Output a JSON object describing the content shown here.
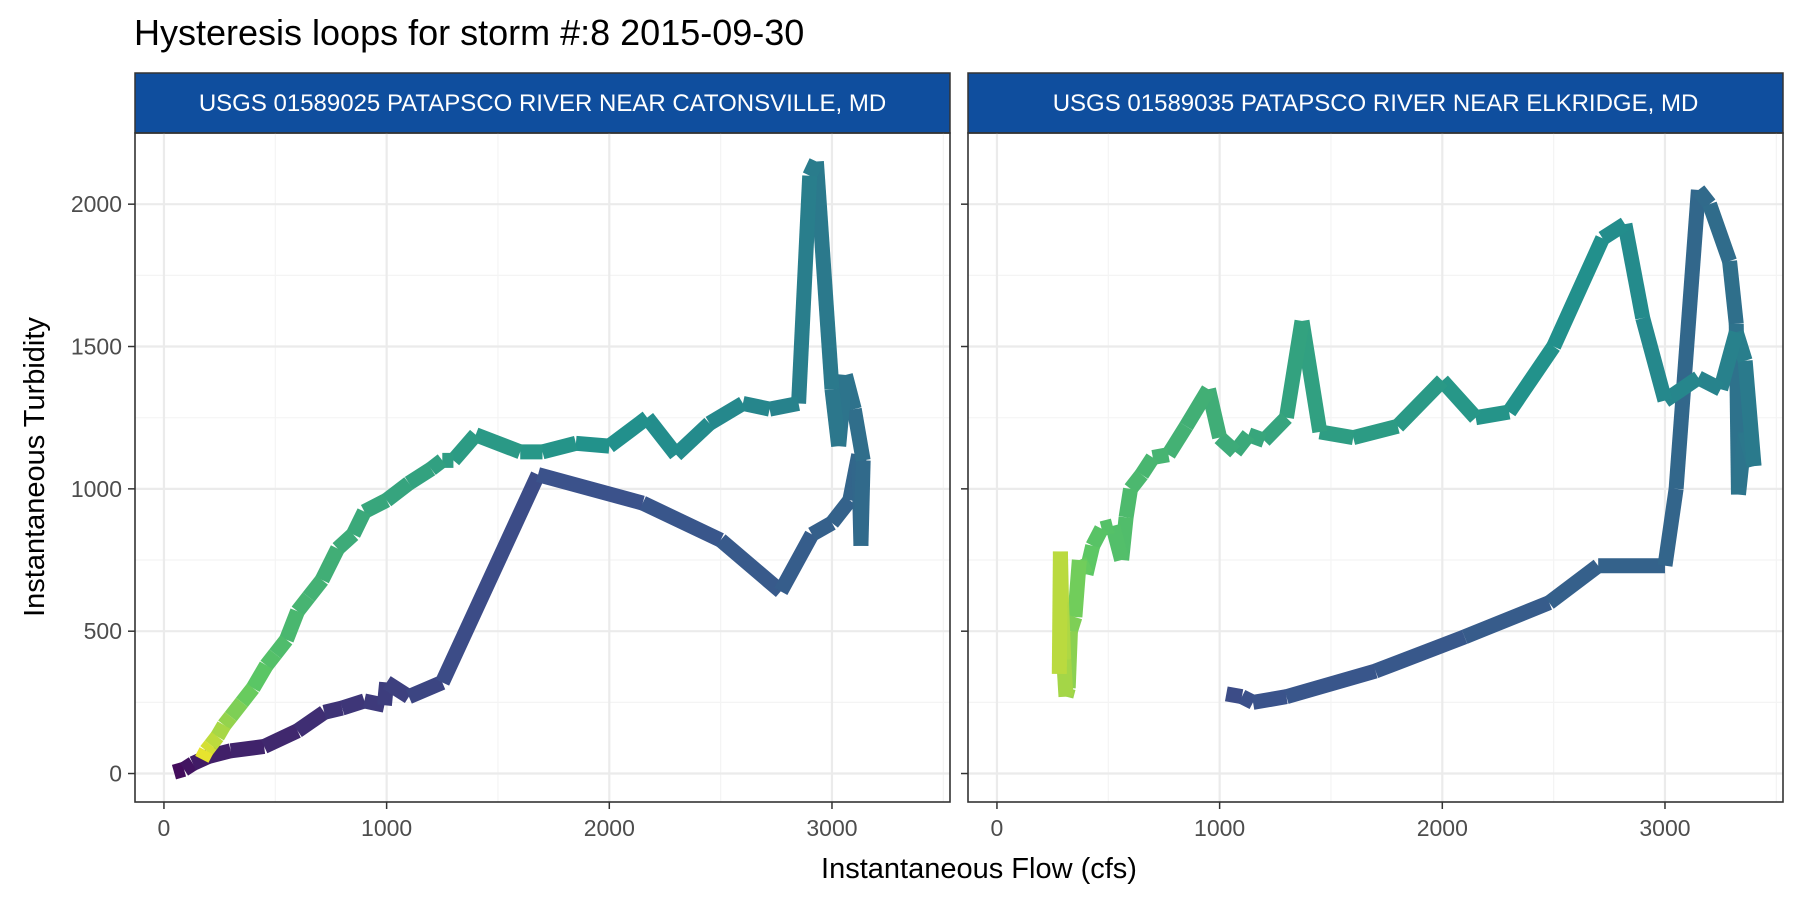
{
  "title": "Hysteresis loops for storm #:8   2015-09-30",
  "xlabel": "Instantaneous Flow (cfs)",
  "ylabel": "Instantaneous Turbidity",
  "colors": {
    "strip_fill": "#0f4e9e",
    "grid_major": "#ebebeb",
    "grid_minor": "#f4f4f4",
    "panel_border": "#333333",
    "palette": "viridis"
  },
  "chart_data": {
    "type": "line",
    "facets": true,
    "xlim": [
      -130,
      3530
    ],
    "ylim": [
      -100,
      2250
    ],
    "x_ticks": [
      0,
      1000,
      2000,
      3000
    ],
    "y_ticks": [
      0,
      500,
      1000,
      1500,
      2000
    ],
    "grid": true,
    "color_mapping": "viridis gradient by time along each loop",
    "panels": [
      {
        "strip": "USGS 01589025 PATAPSCO RIVER NEAR CATONSVILLE, MD",
        "points": [
          [
            45,
            5,
            0.02
          ],
          [
            90,
            15,
            0.05
          ],
          [
            130,
            35,
            0.07
          ],
          [
            200,
            60,
            0.09
          ],
          [
            300,
            80,
            0.1
          ],
          [
            450,
            95,
            0.11
          ],
          [
            600,
            150,
            0.13
          ],
          [
            720,
            215,
            0.15
          ],
          [
            800,
            230,
            0.16
          ],
          [
            900,
            255,
            0.17
          ],
          [
            990,
            240,
            0.18
          ],
          [
            1000,
            320,
            0.19
          ],
          [
            1100,
            270,
            0.2
          ],
          [
            1250,
            320,
            0.22
          ],
          [
            1680,
            1050,
            0.24
          ],
          [
            2150,
            950,
            0.26
          ],
          [
            2500,
            820,
            0.27
          ],
          [
            2770,
            640,
            0.29
          ],
          [
            2910,
            840,
            0.3
          ],
          [
            3000,
            880,
            0.31
          ],
          [
            3080,
            960,
            0.32
          ],
          [
            3120,
            1120,
            0.33
          ],
          [
            3130,
            800,
            0.34
          ],
          [
            3140,
            1100,
            0.35
          ],
          [
            3100,
            1280,
            0.37
          ],
          [
            3060,
            1400,
            0.38
          ],
          [
            3030,
            1150,
            0.39
          ],
          [
            3000,
            1350,
            0.4
          ],
          [
            2930,
            2150,
            0.41
          ],
          [
            2900,
            2100,
            0.42
          ],
          [
            2850,
            1300,
            0.43
          ],
          [
            2720,
            1280,
            0.45
          ],
          [
            2600,
            1300,
            0.46
          ],
          [
            2450,
            1230,
            0.47
          ],
          [
            2300,
            1120,
            0.48
          ],
          [
            2170,
            1250,
            0.49
          ],
          [
            2000,
            1150,
            0.5
          ],
          [
            1850,
            1160,
            0.51
          ],
          [
            1700,
            1130,
            0.52
          ],
          [
            1600,
            1130,
            0.53
          ],
          [
            1400,
            1190,
            0.54
          ],
          [
            1300,
            1100,
            0.55
          ],
          [
            1250,
            1100,
            0.56
          ],
          [
            1200,
            1070,
            0.57
          ],
          [
            1100,
            1020,
            0.58
          ],
          [
            1000,
            960,
            0.59
          ],
          [
            900,
            920,
            0.6
          ],
          [
            850,
            840,
            0.61
          ],
          [
            780,
            790,
            0.62
          ],
          [
            710,
            680,
            0.64
          ],
          [
            650,
            620,
            0.65
          ],
          [
            600,
            570,
            0.66
          ],
          [
            550,
            470,
            0.68
          ],
          [
            500,
            420,
            0.7
          ],
          [
            460,
            380,
            0.72
          ],
          [
            400,
            300,
            0.75
          ],
          [
            350,
            250,
            0.78
          ],
          [
            300,
            200,
            0.82
          ],
          [
            270,
            170,
            0.85
          ],
          [
            240,
            130,
            0.88
          ],
          [
            210,
            100,
            0.92
          ],
          [
            190,
            80,
            0.95
          ],
          [
            170,
            50,
            0.98
          ]
        ]
      },
      {
        "strip": "USGS 01589035 PATAPSCO RIVER NEAR ELKRIDGE, MD",
        "points": [
          [
            1030,
            280,
            0.22
          ],
          [
            1100,
            270,
            0.24
          ],
          [
            1150,
            250,
            0.25
          ],
          [
            1300,
            270,
            0.26
          ],
          [
            1700,
            360,
            0.27
          ],
          [
            2100,
            480,
            0.28
          ],
          [
            2480,
            600,
            0.3
          ],
          [
            2700,
            730,
            0.31
          ],
          [
            3000,
            730,
            0.32
          ],
          [
            3050,
            1000,
            0.33
          ],
          [
            3150,
            2050,
            0.34
          ],
          [
            3200,
            2000,
            0.35
          ],
          [
            3290,
            1800,
            0.36
          ],
          [
            3320,
            1580,
            0.37
          ],
          [
            3330,
            980,
            0.38
          ],
          [
            3360,
            1200,
            0.39
          ],
          [
            3400,
            1080,
            0.4
          ],
          [
            3360,
            1450,
            0.42
          ],
          [
            3320,
            1550,
            0.43
          ],
          [
            3250,
            1350,
            0.44
          ],
          [
            3150,
            1390,
            0.45
          ],
          [
            3000,
            1310,
            0.46
          ],
          [
            2900,
            1600,
            0.47
          ],
          [
            2820,
            1930,
            0.48
          ],
          [
            2720,
            1880,
            0.49
          ],
          [
            2500,
            1500,
            0.5
          ],
          [
            2300,
            1270,
            0.51
          ],
          [
            2150,
            1250,
            0.52
          ],
          [
            2000,
            1380,
            0.53
          ],
          [
            1800,
            1220,
            0.54
          ],
          [
            1600,
            1180,
            0.55
          ],
          [
            1450,
            1200,
            0.56
          ],
          [
            1370,
            1590,
            0.57
          ],
          [
            1300,
            1250,
            0.58
          ],
          [
            1200,
            1170,
            0.59
          ],
          [
            1130,
            1190,
            0.6
          ],
          [
            1070,
            1130,
            0.61
          ],
          [
            1000,
            1180,
            0.62
          ],
          [
            950,
            1350,
            0.63
          ],
          [
            850,
            1220,
            0.64
          ],
          [
            770,
            1120,
            0.65
          ],
          [
            700,
            1110,
            0.66
          ],
          [
            650,
            1050,
            0.67
          ],
          [
            600,
            1000,
            0.68
          ],
          [
            580,
            900,
            0.69
          ],
          [
            560,
            750,
            0.7
          ],
          [
            520,
            870,
            0.71
          ],
          [
            470,
            860,
            0.72
          ],
          [
            430,
            800,
            0.73
          ],
          [
            400,
            700,
            0.75
          ],
          [
            370,
            750,
            0.77
          ],
          [
            350,
            550,
            0.79
          ],
          [
            330,
            500,
            0.81
          ],
          [
            320,
            300,
            0.83
          ],
          [
            310,
            270,
            0.85
          ],
          [
            300,
            400,
            0.87
          ],
          [
            290,
            600,
            0.88
          ],
          [
            285,
            780,
            0.89
          ],
          [
            280,
            350,
            0.9
          ]
        ]
      }
    ]
  }
}
